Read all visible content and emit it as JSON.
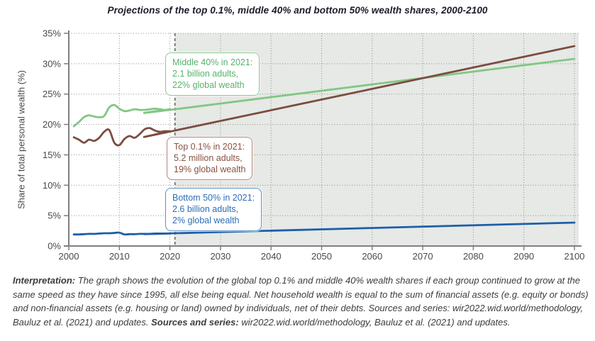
{
  "figure": {
    "title": "Projections of the top 0.1%, middle 40% and bottom 50% wealth shares, 2000-2100"
  },
  "chart_data": {
    "type": "line",
    "title": "Projections of the top 0.1%, middle 40% and bottom 50% wealth shares, 2000-2100",
    "xlabel": "",
    "ylabel": "Share of total personal wealth (%)",
    "xlim": [
      2000,
      2100
    ],
    "ylim": [
      0,
      35
    ],
    "grid": "dotted",
    "legend": "none (labeled via callout boxes)",
    "projection_start": 2021,
    "projection_shade_color": "#e6e9e6",
    "x_ticks": [
      2000,
      2010,
      2020,
      2030,
      2040,
      2050,
      2060,
      2070,
      2080,
      2090,
      2100
    ],
    "y_ticks": [
      {
        "label": "0%",
        "value": 0
      },
      {
        "label": "5%",
        "value": 5
      },
      {
        "label": "10%",
        "value": 10
      },
      {
        "label": "15%",
        "value": 15
      },
      {
        "label": "20%",
        "value": 20
      },
      {
        "label": "25%",
        "value": 25
      },
      {
        "label": "30%",
        "value": 30
      },
      {
        "label": "35%",
        "value": 35
      }
    ],
    "series": [
      {
        "name": "Middle 40%",
        "color": "#82c783",
        "points": [
          [
            2001,
            19.7
          ],
          [
            2002,
            20.4
          ],
          [
            2003,
            21.2
          ],
          [
            2004,
            21.5
          ],
          [
            2005,
            21.3
          ],
          [
            2006,
            21.2
          ],
          [
            2007,
            21.4
          ],
          [
            2008,
            22.8
          ],
          [
            2009,
            23.2
          ],
          [
            2010,
            22.6
          ],
          [
            2011,
            22.2
          ],
          [
            2012,
            22.3
          ],
          [
            2013,
            22.5
          ],
          [
            2014,
            22.4
          ],
          [
            2015,
            22.4
          ],
          [
            2016,
            22.5
          ],
          [
            2017,
            22.6
          ],
          [
            2018,
            22.5
          ],
          [
            2019,
            22.4
          ],
          [
            2020,
            22.5
          ],
          [
            2021,
            22.5
          ],
          [
            2100,
            30.8
          ]
        ]
      },
      {
        "name": "Top 0.1%",
        "color": "#7b4d41",
        "points": [
          [
            2001,
            17.9
          ],
          [
            2002,
            17.5
          ],
          [
            2003,
            17.0
          ],
          [
            2004,
            17.5
          ],
          [
            2005,
            17.3
          ],
          [
            2006,
            17.8
          ],
          [
            2007,
            18.8
          ],
          [
            2008,
            19.1
          ],
          [
            2009,
            17.0
          ],
          [
            2010,
            16.6
          ],
          [
            2011,
            17.6
          ],
          [
            2012,
            18.1
          ],
          [
            2013,
            17.8
          ],
          [
            2014,
            18.4
          ],
          [
            2015,
            19.2
          ],
          [
            2016,
            19.4
          ],
          [
            2017,
            19.0
          ],
          [
            2018,
            18.8
          ],
          [
            2019,
            18.9
          ],
          [
            2020,
            18.9
          ],
          [
            2021,
            19.0
          ],
          [
            2100,
            32.9
          ]
        ]
      },
      {
        "name": "Bottom 50%",
        "color": "#1c5fa8",
        "points": [
          [
            2001,
            1.9
          ],
          [
            2002,
            1.9
          ],
          [
            2003,
            1.95
          ],
          [
            2004,
            2.0
          ],
          [
            2005,
            2.0
          ],
          [
            2006,
            2.05
          ],
          [
            2007,
            2.1
          ],
          [
            2008,
            2.1
          ],
          [
            2009,
            2.15
          ],
          [
            2010,
            2.2
          ],
          [
            2011,
            1.9
          ],
          [
            2012,
            1.95
          ],
          [
            2013,
            1.95
          ],
          [
            2014,
            2.0
          ],
          [
            2015,
            2.0
          ],
          [
            2016,
            2.0
          ],
          [
            2017,
            2.05
          ],
          [
            2018,
            2.05
          ],
          [
            2019,
            2.05
          ],
          [
            2020,
            2.05
          ],
          [
            2021,
            2.1
          ],
          [
            2100,
            3.85
          ]
        ]
      }
    ],
    "annotations": [
      {
        "series": "Middle 40%",
        "text_color": "#55b36a",
        "border_color": "#86ca8c",
        "lines": [
          "Middle 40% in 2021:",
          "2.1 billion adults,",
          "22% global wealth"
        ]
      },
      {
        "series": "Top 0.1%",
        "text_color": "#8a5140",
        "border_color": "#b2887a",
        "lines": [
          "Top 0.1% in 2021:",
          "5.2 million adults,",
          "19% global wealth"
        ]
      },
      {
        "series": "Bottom 50%",
        "text_color": "#2d6db8",
        "border_color": "#5b91c9",
        "lines": [
          "Bottom 50% in 2021:",
          "2.6 billion adults,",
          "2% global wealth"
        ]
      }
    ]
  },
  "interpretation": {
    "label": "Interpretation:",
    "body1": " The graph shows the evolution of the global top 0.1% and middle 40% wealth shares if each group continued to grow at the same speed as they have since 1995, all else being equal. Net household wealth is equal to the sum of financial assets (e.g. equity or bonds) and non-financial assets (e.g. housing or land) owned by individuals, net of their debts. Sources and series: wir2022.wid.world/methodology, Bauluz et al. (2021) and updates. ",
    "sources_label": "Sources and series:",
    "body2": " wir2022.wid.world/methodology, Bauluz et al. (2021) and updates."
  }
}
